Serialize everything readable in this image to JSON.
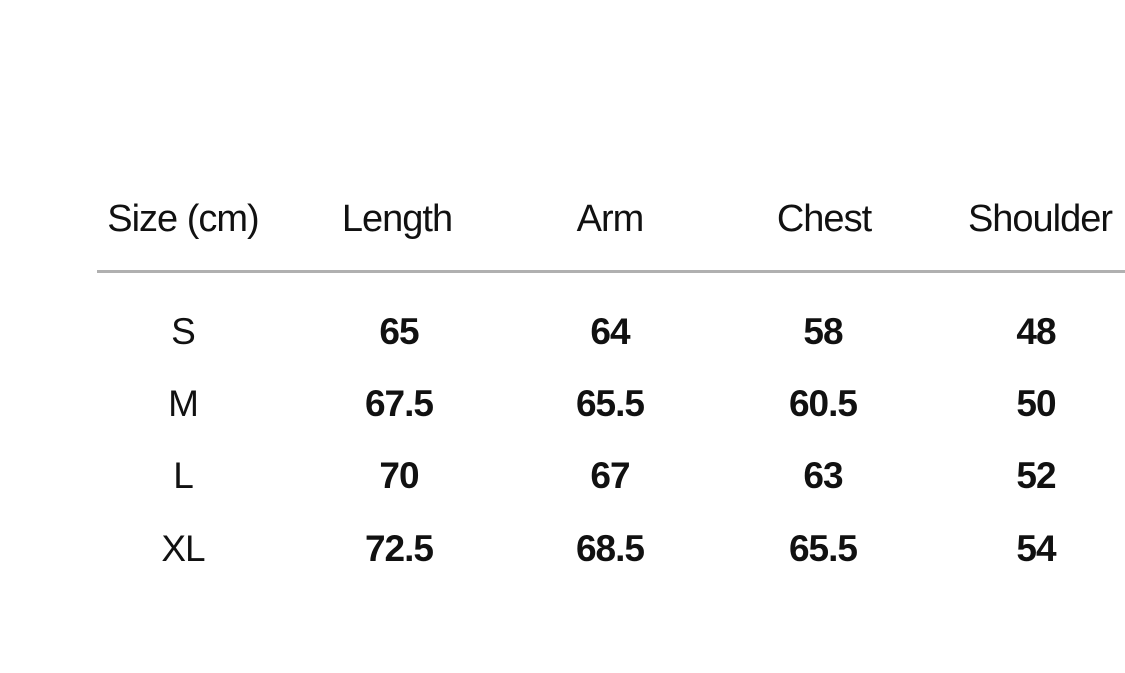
{
  "table": {
    "headers": [
      "Size (cm)",
      "Length",
      "Arm",
      "Chest",
      "Shoulder"
    ],
    "rows": [
      [
        "S",
        "65",
        "64",
        "58",
        "48"
      ],
      [
        "M",
        "67.5",
        "65.5",
        "60.5",
        "50"
      ],
      [
        "L",
        "70",
        "67",
        "63",
        "52"
      ],
      [
        "XL",
        "72.5",
        "68.5",
        "65.5",
        "54"
      ]
    ]
  }
}
